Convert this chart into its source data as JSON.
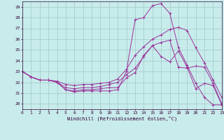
{
  "xlabel": "Windchill (Refroidissement éolien,°C)",
  "bg_color": "#c8ecec",
  "grid_color": "#a0c8c8",
  "line_color": "#993399",
  "xlim": [
    0,
    23
  ],
  "ylim": [
    19.5,
    29.5
  ],
  "yticks": [
    20,
    21,
    22,
    23,
    24,
    25,
    26,
    27,
    28,
    29
  ],
  "xticks": [
    0,
    1,
    2,
    3,
    4,
    5,
    6,
    7,
    8,
    9,
    10,
    11,
    12,
    13,
    14,
    15,
    16,
    17,
    18,
    19,
    20,
    21,
    22,
    23
  ],
  "x": [
    0,
    1,
    2,
    3,
    4,
    5,
    6,
    7,
    8,
    9,
    10,
    11,
    12,
    13,
    14,
    15,
    16,
    17,
    18,
    19,
    20,
    21,
    22,
    23
  ],
  "lines": [
    [
      23.0,
      22.5,
      22.2,
      22.2,
      22.1,
      21.8,
      21.7,
      21.8,
      21.8,
      21.9,
      22.0,
      22.3,
      23.2,
      24.5,
      25.3,
      26.0,
      26.4,
      26.9,
      27.1,
      26.8,
      25.2,
      23.8,
      22.2,
      20.6
    ],
    [
      23.0,
      22.5,
      22.2,
      22.2,
      22.0,
      21.5,
      21.4,
      21.5,
      21.5,
      21.6,
      21.8,
      22.0,
      22.7,
      23.3,
      24.4,
      25.4,
      25.7,
      25.9,
      23.4,
      23.3,
      23.5,
      23.4,
      21.9,
      20.0
    ],
    [
      23.0,
      22.5,
      22.2,
      22.2,
      22.0,
      21.3,
      21.2,
      21.3,
      21.3,
      21.4,
      21.5,
      21.5,
      22.4,
      22.9,
      24.5,
      25.4,
      24.4,
      23.9,
      24.9,
      23.4,
      21.4,
      21.9,
      21.7,
      19.9
    ],
    [
      23.0,
      22.5,
      22.2,
      22.2,
      22.0,
      21.3,
      21.1,
      21.2,
      21.2,
      21.2,
      21.2,
      21.3,
      23.0,
      27.8,
      28.0,
      29.1,
      29.3,
      28.4,
      25.2,
      23.6,
      21.9,
      20.6,
      19.9,
      19.9
    ]
  ]
}
